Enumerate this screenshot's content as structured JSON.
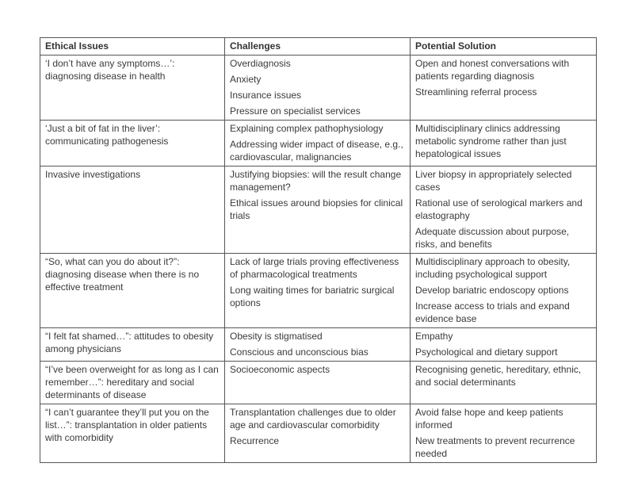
{
  "headers": [
    "Ethical Issues",
    "Challenges",
    "Potential Solution"
  ],
  "rows": [
    {
      "issue": "‘I don’t have any symptoms…’: diagnosing disease in health",
      "challenges": [
        "Overdiagnosis",
        "Anxiety",
        "Insurance issues",
        "Pressure on specialist services"
      ],
      "solutions": [
        "Open and honest conversations with patients regarding diagnosis",
        "Streamlining referral process"
      ]
    },
    {
      "issue": "‘Just a bit of fat in the liver’: communicating pathogenesis",
      "challenges": [
        "Explaining complex pathophysiology",
        "Addressing wider impact of disease, e.g., cardiovascular, malignancies"
      ],
      "solutions": [
        "Multidisciplinary clinics addressing metabolic syndrome rather than just hepatological issues"
      ]
    },
    {
      "issue": "Invasive investigations",
      "challenges": [
        "Justifying biopsies: will the result change management?",
        "Ethical issues around biopsies for clinical trials"
      ],
      "solutions": [
        "Liver biopsy in appropriately selected cases",
        "Rational use of serological markers and elastography",
        "Adequate discussion about purpose, risks, and benefits"
      ]
    },
    {
      "issue": "“So, what can you do about it?”: diagnosing disease when there is no effective treatment",
      "challenges": [
        "Lack of large trials proving effectiveness of pharmacological treatments",
        "Long waiting times for bariatric surgical options"
      ],
      "solutions": [
        "Multidisciplinary approach to obesity, including psychological support",
        "Develop bariatric endoscopy options",
        "Increase access to trials and expand evidence base"
      ]
    },
    {
      "issue": "“I felt fat shamed…”: attitudes to obesity among physicians",
      "challenges": [
        "Obesity is stigmatised",
        "Conscious and unconscious bias"
      ],
      "solutions": [
        "Empathy",
        "Psychological and dietary support"
      ]
    },
    {
      "issue": "“I’ve been overweight for as long as I can remember…”: hereditary and social determinants of disease",
      "challenges": [
        "Socioeconomic aspects"
      ],
      "solutions": [
        "Recognising genetic, hereditary, ethnic, and social determinants"
      ]
    },
    {
      "issue": "“I can’t guarantee they’ll put you on the list…”: transplantation in older patients with comorbidity",
      "challenges": [
        "Transplantation challenges due to older age and cardiovascular comorbidity",
        "Recurrence"
      ],
      "solutions": [
        "Avoid false hope and keep patients informed",
        "New treatments to prevent recurrence needed"
      ]
    }
  ]
}
